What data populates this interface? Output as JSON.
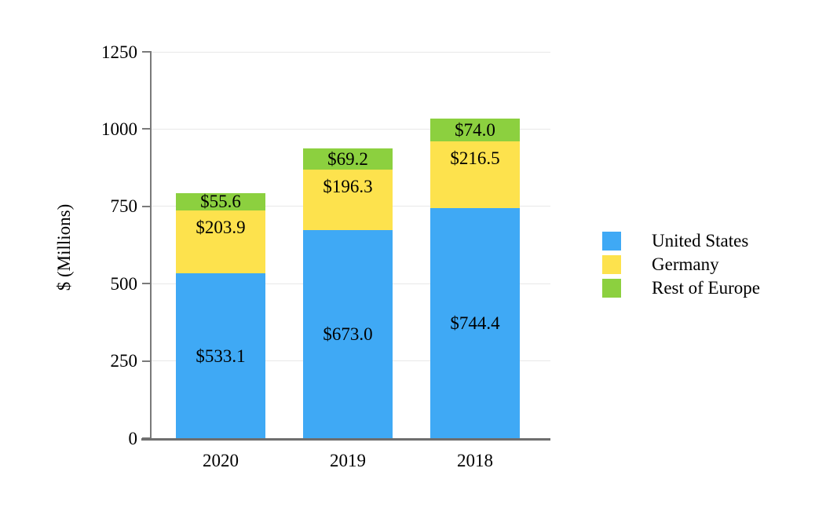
{
  "chart_data": {
    "type": "bar",
    "stacked": true,
    "title": "",
    "xlabel": "",
    "ylabel": "$ (Millions)",
    "categories": [
      "2020",
      "2019",
      "2018"
    ],
    "series": [
      {
        "name": "United States",
        "color": "#3FA9F5",
        "values": [
          533.1,
          673.0,
          744.4
        ],
        "labels": [
          "$533.1",
          "$673.0",
          "$744.4"
        ]
      },
      {
        "name": "Germany",
        "color": "#FDE24D",
        "values": [
          203.9,
          196.3,
          216.5
        ],
        "labels": [
          "$203.9",
          "$196.3",
          "$216.5"
        ]
      },
      {
        "name": "Rest of Europe",
        "color": "#8CD03F",
        "values": [
          55.6,
          69.2,
          74.0
        ],
        "labels": [
          "$55.6",
          "$69.2",
          "$74.0"
        ]
      }
    ],
    "ylim": [
      0,
      1250
    ],
    "yticks": [
      0,
      250,
      500,
      750,
      1000,
      1250
    ],
    "grid": true,
    "legend_position": "right",
    "colors": {
      "gridline": "#E8E8E8",
      "axis": "#7A7A7A",
      "text": "#000000",
      "background": "#FFFFFF"
    }
  }
}
